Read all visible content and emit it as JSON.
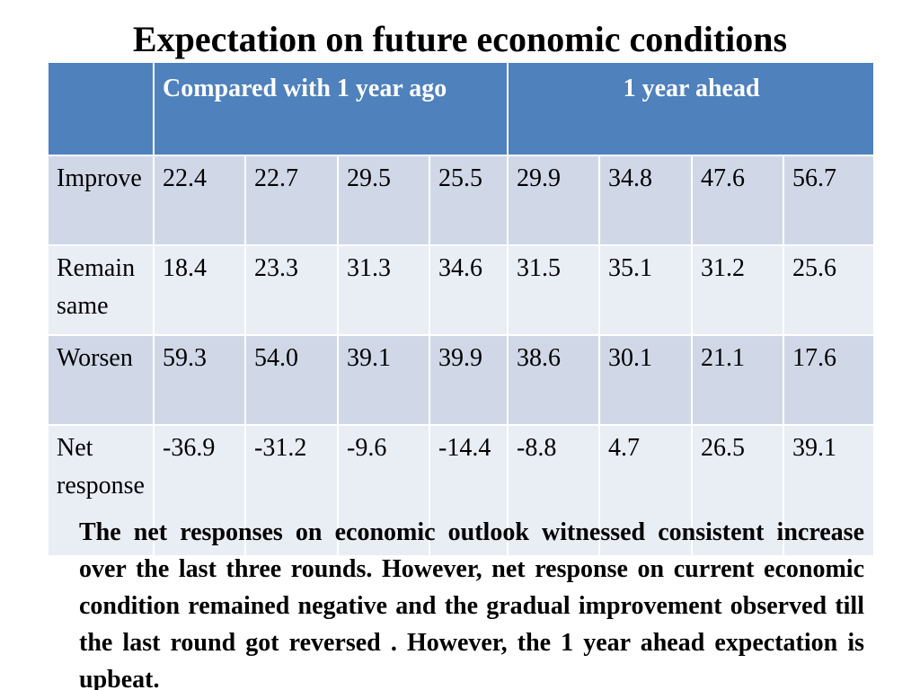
{
  "title": "Expectation on future economic conditions",
  "table": {
    "header": {
      "corner": "",
      "group1": "Compared with 1 year ago",
      "group2": "1 year ahead"
    },
    "rows": [
      {
        "label": "Improve",
        "values": [
          "22.4",
          "22.7",
          "29.5",
          "25.5",
          "29.9",
          "34.8",
          "47.6",
          "56.7"
        ]
      },
      {
        "label": "Remain same",
        "values": [
          "18.4",
          "23.3",
          "31.3",
          "34.6",
          "31.5",
          "35.1",
          "31.2",
          "25.6"
        ]
      },
      {
        "label": "Worsen",
        "values": [
          "59.3",
          "54.0",
          "39.1",
          "39.9",
          "38.6",
          "30.1",
          "21.1",
          "17.6"
        ]
      },
      {
        "label": "Net response",
        "values": [
          "-36.9",
          "-31.2",
          "-9.6",
          "-14.4",
          "-8.8",
          "4.7",
          "26.5",
          "39.1"
        ]
      }
    ]
  },
  "note": "The net responses on economic outlook witnessed consistent increase over the last three rounds. However, net response on current economic condition remained negative and the gradual improvement observed till the last round got reversed . However, the 1 year ahead expectation is upbeat.",
  "colors": {
    "header_bg": "#4f81bd",
    "row_dark": "#d0d8e8",
    "row_light": "#e9edf4"
  }
}
